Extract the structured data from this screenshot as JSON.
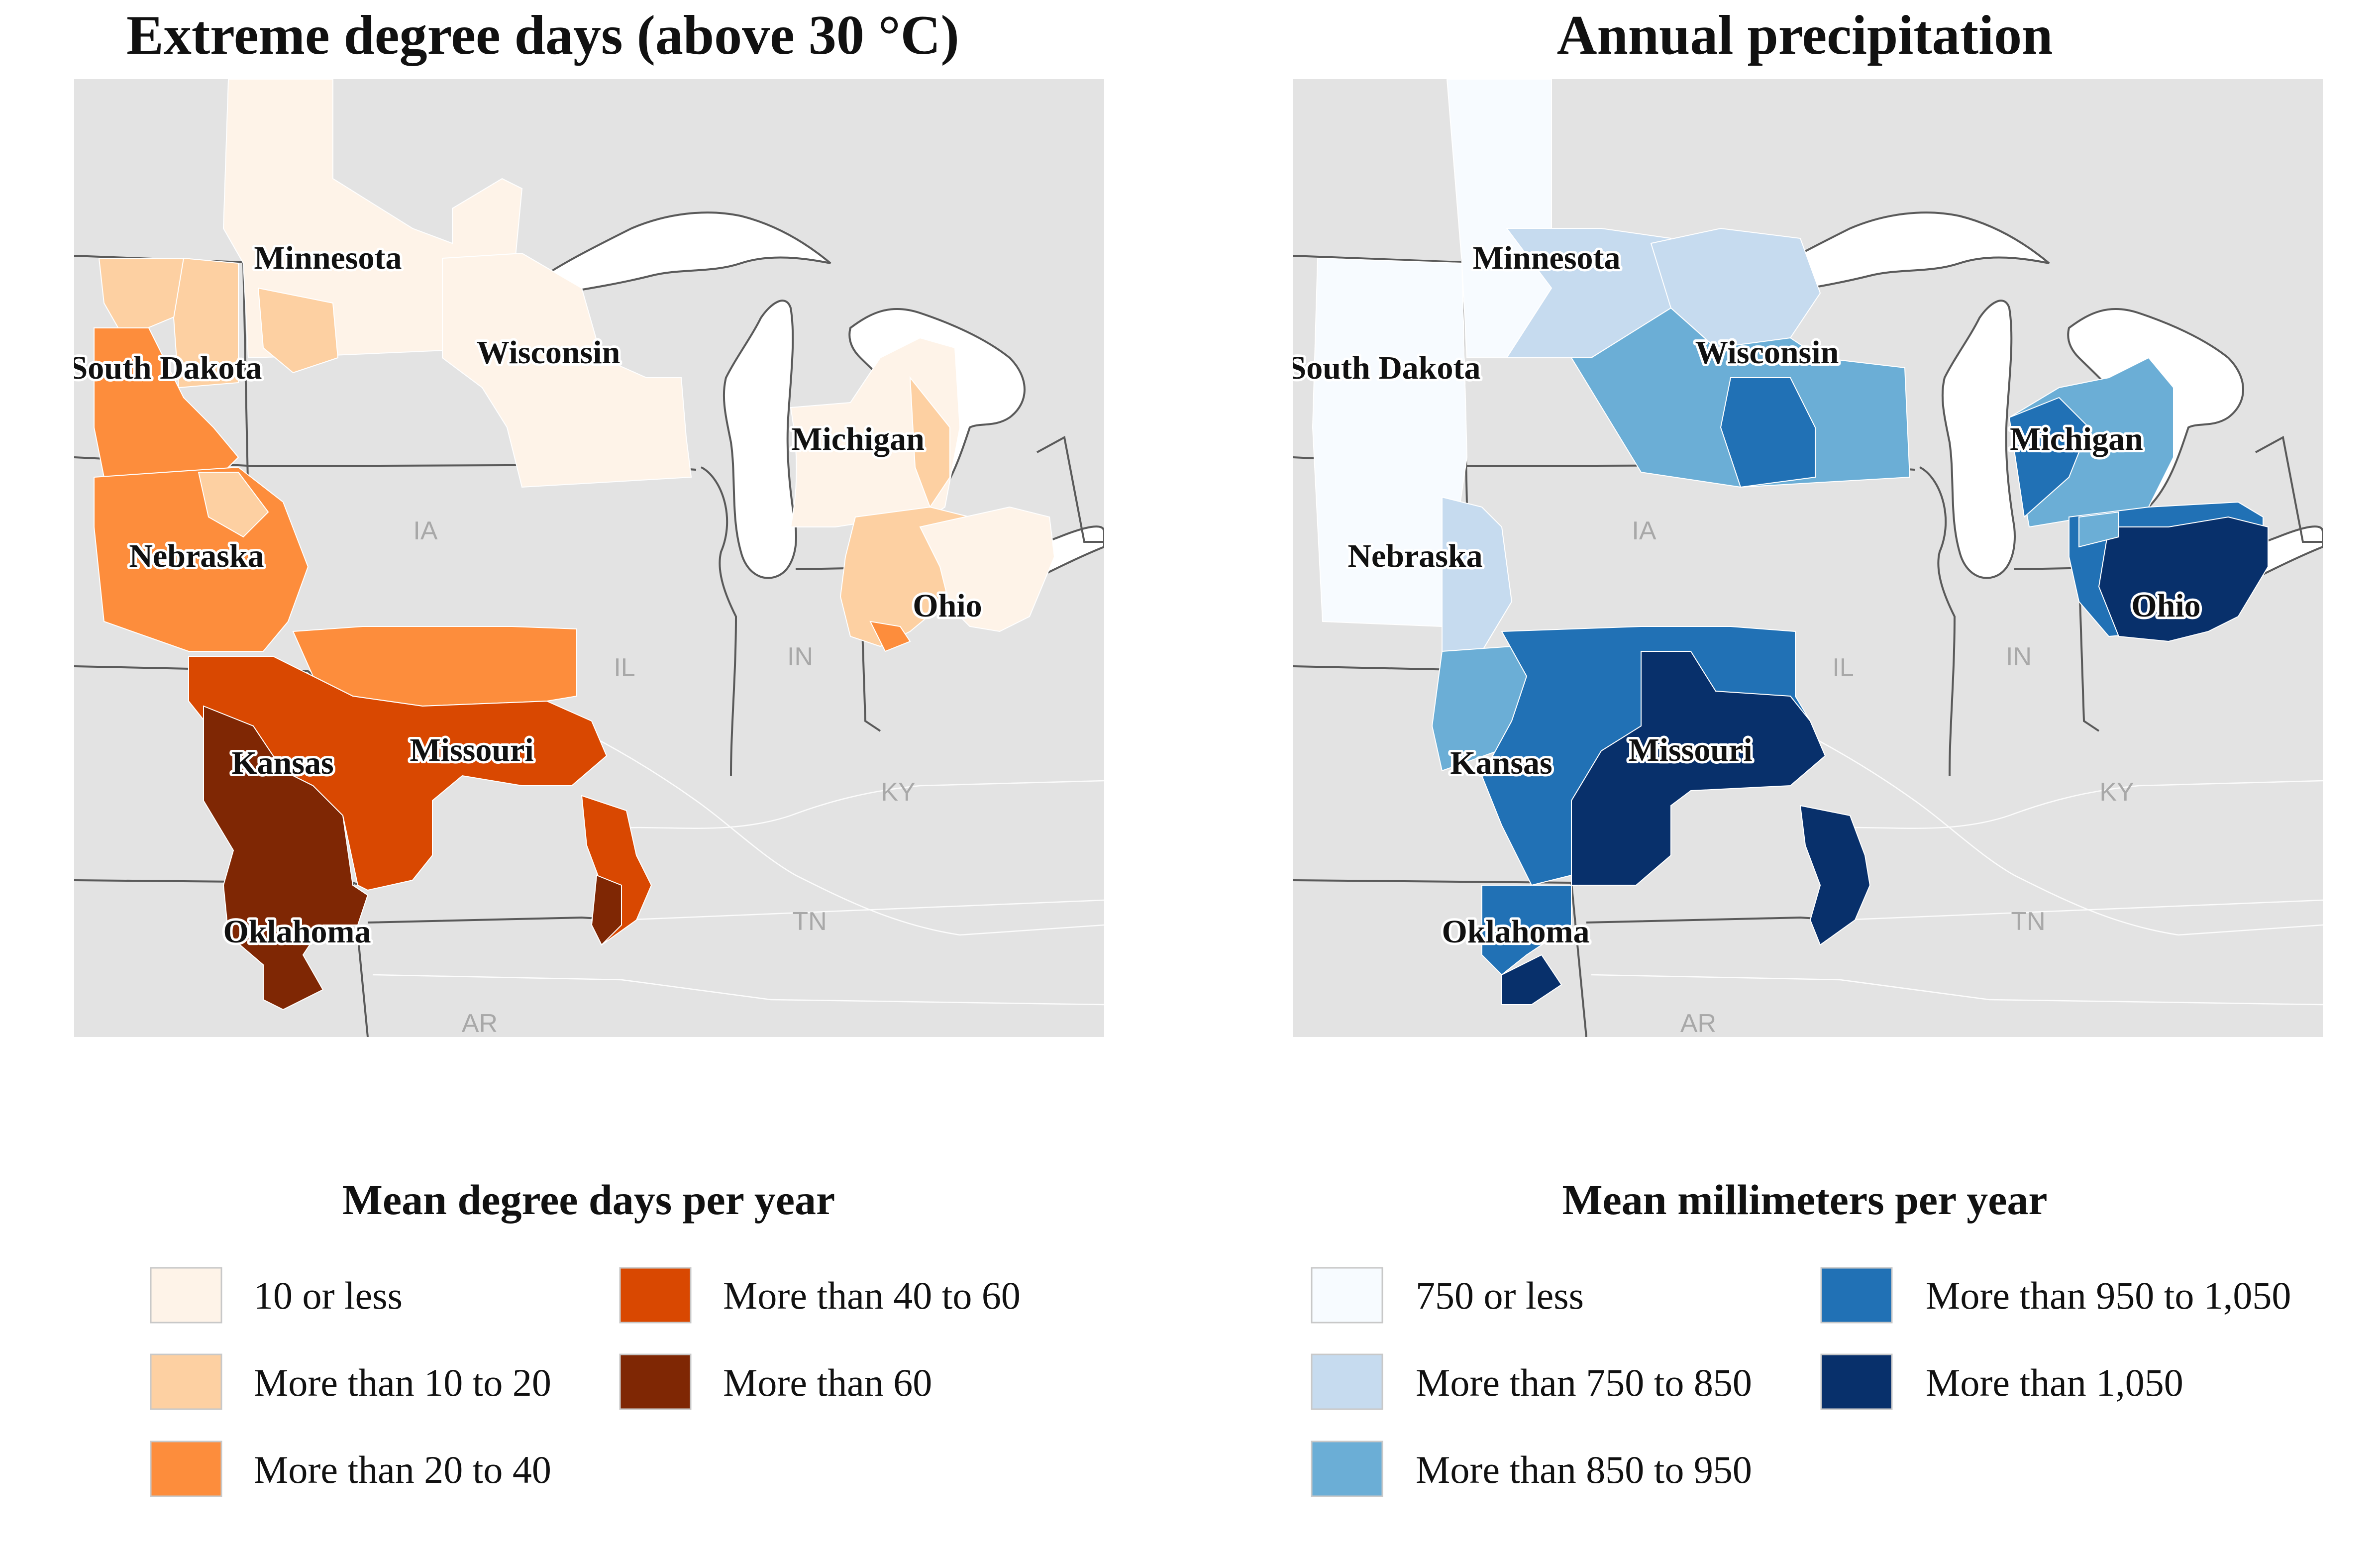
{
  "left_map": {
    "title": "Extreme degree days (above 30 °C)",
    "legend_title": "Mean degree days per year",
    "legend": [
      {
        "label": "10 or less",
        "color": "#FEF3E8"
      },
      {
        "label": "More than 10 to 20",
        "color": "#FDD0A2"
      },
      {
        "label": "More than 20 to 40",
        "color": "#FD8D3C"
      },
      {
        "label": "More than 40 to 60",
        "color": "#D94801"
      },
      {
        "label": "More than 60",
        "color": "#7F2704"
      }
    ]
  },
  "right_map": {
    "title": "Annual precipitation",
    "legend_title": "Mean millimeters per year",
    "legend": [
      {
        "label": "750 or less",
        "color": "#F7FBFF"
      },
      {
        "label": "More than 750 to 850",
        "color": "#C6DBEF"
      },
      {
        "label": "More than 850 to 950",
        "color": "#6BAED6"
      },
      {
        "label": "More than 950 to 1,050",
        "color": "#2171B5"
      },
      {
        "label": "More than 1,050",
        "color": "#08306B"
      }
    ]
  },
  "state_labels": [
    "Minnesota",
    "South Dakota",
    "Wisconsin",
    "Michigan",
    "Nebraska",
    "Ohio",
    "Kansas",
    "Missouri",
    "Oklahoma"
  ],
  "state_abbreviations": [
    "IA",
    "IL",
    "IN",
    "KY",
    "TN",
    "AR"
  ],
  "colors": {
    "background_land": "#E3E3E3",
    "water": "#FFFFFF",
    "state_border": "#5a5a5a"
  }
}
